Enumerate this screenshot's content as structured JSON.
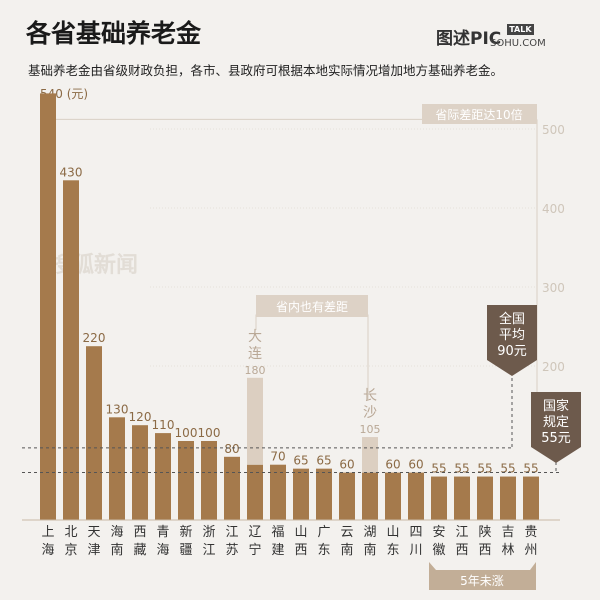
{
  "title": "各省基础养老金",
  "logo": {
    "cn": "图述",
    "pic": "PIC",
    "talk": "TALK",
    "sohu": "SOHU.COM"
  },
  "subtitle": "基础养老金由省级财政负担，各市、县政府可根据本地实际情况增加地方基础养老金。",
  "watermark": "搜狐新闻",
  "chart_data": {
    "type": "bar",
    "title": "各省基础养老金",
    "unit": "(元)",
    "categories": [
      "上海",
      "北京",
      "天津",
      "海南",
      "西藏",
      "青海",
      "新疆",
      "浙江",
      "江苏",
      "辽宁",
      "福建",
      "山西",
      "广东",
      "云南",
      "湖南",
      "山东",
      "四川",
      "安徽",
      "江西",
      "陕西",
      "吉林",
      "贵州"
    ],
    "values": [
      540,
      430,
      220,
      130,
      120,
      110,
      100,
      100,
      80,
      70,
      70,
      65,
      65,
      60,
      60,
      60,
      60,
      55,
      55,
      55,
      55,
      55
    ],
    "ylim": [
      0,
      540
    ],
    "yticks": [
      200,
      300,
      400,
      500
    ],
    "city_overlays": [
      {
        "index": 9,
        "city": "大连",
        "value": 180
      },
      {
        "index": 14,
        "city": "长沙",
        "value": 105
      }
    ],
    "reference_lines": [
      {
        "label": "全国平均90元",
        "value": 90
      },
      {
        "label": "国家规定55元",
        "value": 55
      }
    ],
    "annotations": {
      "gap_province": "省际差距达10倍",
      "gap_within": "省内也有差距",
      "unchanged": "5年未涨",
      "avg": [
        "全国",
        "平均",
        "90元"
      ],
      "min": [
        "国家",
        "规定",
        "55元"
      ]
    },
    "colors": {
      "bar": "#a57a4c",
      "overlay": "#dccfc1",
      "callout": "#6d5a4c",
      "label": "#8b6a45",
      "tick": "#cfc6ba"
    }
  }
}
